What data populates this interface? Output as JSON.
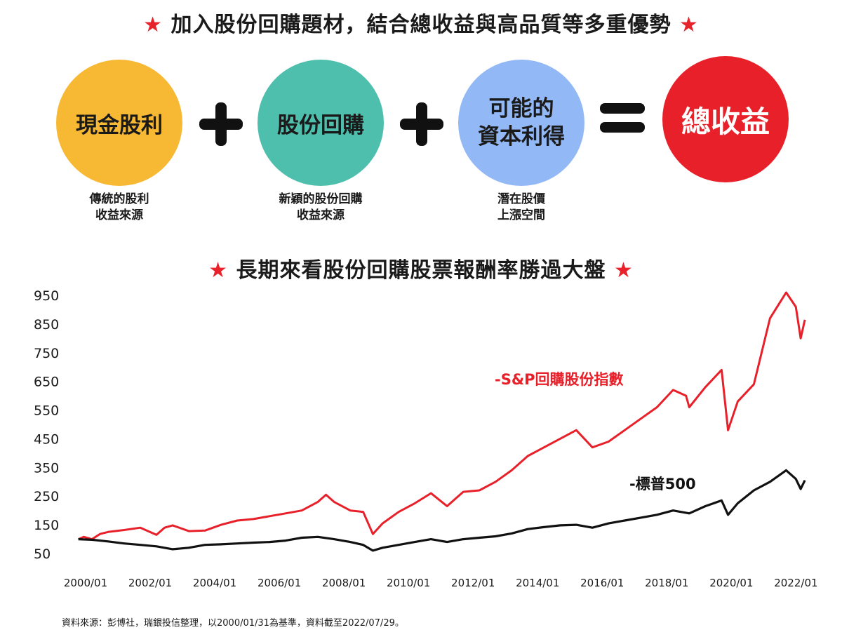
{
  "headline_top": {
    "star": "★",
    "text": "加入股份回購題材，結合總收益與高品質等多重優勢"
  },
  "formula": {
    "dividend": "現金股利",
    "buyback": "股份回購",
    "capital_line1": "可能的",
    "capital_line2": "資本利得",
    "total": "總收益",
    "colors": {
      "dividend": "#f7b934",
      "buyback": "#4fbfad",
      "capital": "#92b8f5",
      "total": "#e8202a"
    }
  },
  "captions": {
    "dividend": [
      "傳統的股利",
      "收益來源"
    ],
    "buyback": [
      "新穎的股份回購",
      "收益來源"
    ],
    "capital": [
      "潛在股價",
      "上漲空間"
    ]
  },
  "headline_mid": {
    "star": "★",
    "text": "長期來看股份回購股票報酬率勝過大盤"
  },
  "chart_data": {
    "type": "line",
    "title": "",
    "xlabel": "",
    "ylabel": "",
    "ylim": [
      50,
      950
    ],
    "yticks": [
      "950",
      "850",
      "750",
      "650",
      "550",
      "450",
      "350",
      "250",
      "150",
      "50"
    ],
    "xticks": [
      "2000/01",
      "2002/01",
      "2004/01",
      "2006/01",
      "2008/01",
      "2010/01",
      "2012/01",
      "2014/01",
      "2016/01",
      "2018/01",
      "2020/01",
      "2022/01"
    ],
    "xrange": [
      2000.0,
      2022.6
    ],
    "grid": false,
    "series": [
      {
        "name": "-S&P回購股份指數",
        "color": "#e8202a",
        "x": [
          2000.08,
          2000.25,
          2000.5,
          2000.75,
          2001.0,
          2001.5,
          2002.0,
          2002.5,
          2002.75,
          2003.0,
          2003.5,
          2004.0,
          2004.5,
          2005.0,
          2005.5,
          2006.0,
          2006.5,
          2007.0,
          2007.5,
          2007.75,
          2008.0,
          2008.5,
          2008.9,
          2009.2,
          2009.5,
          2010.0,
          2010.5,
          2011.0,
          2011.5,
          2011.75,
          2012.0,
          2012.5,
          2013.0,
          2013.5,
          2014.0,
          2014.5,
          2015.0,
          2015.5,
          2016.0,
          2016.5,
          2017.0,
          2017.5,
          2018.0,
          2018.5,
          2018.9,
          2019.0,
          2019.5,
          2020.0,
          2020.2,
          2020.5,
          2021.0,
          2021.5,
          2022.0,
          2022.3,
          2022.45,
          2022.58
        ],
        "values": [
          100,
          108,
          100,
          118,
          125,
          132,
          140,
          115,
          140,
          148,
          128,
          130,
          150,
          165,
          170,
          180,
          190,
          200,
          230,
          255,
          230,
          200,
          195,
          118,
          155,
          195,
          225,
          260,
          215,
          240,
          265,
          270,
          300,
          340,
          390,
          420,
          450,
          480,
          420,
          440,
          480,
          520,
          560,
          620,
          600,
          560,
          630,
          690,
          480,
          580,
          640,
          870,
          960,
          910,
          800,
          865
        ]
      },
      {
        "name": "-標普500",
        "color": "#111111",
        "x": [
          2000.08,
          2000.5,
          2001.0,
          2001.5,
          2002.0,
          2002.5,
          2003.0,
          2003.5,
          2004.0,
          2004.5,
          2005.0,
          2005.5,
          2006.0,
          2006.5,
          2007.0,
          2007.5,
          2008.0,
          2008.5,
          2008.9,
          2009.2,
          2009.5,
          2010.0,
          2010.5,
          2011.0,
          2011.5,
          2012.0,
          2012.5,
          2013.0,
          2013.5,
          2014.0,
          2014.5,
          2015.0,
          2015.5,
          2016.0,
          2016.5,
          2017.0,
          2017.5,
          2018.0,
          2018.5,
          2019.0,
          2019.5,
          2020.0,
          2020.2,
          2020.5,
          2021.0,
          2021.5,
          2022.0,
          2022.3,
          2022.45,
          2022.58
        ],
        "values": [
          100,
          98,
          92,
          85,
          80,
          75,
          65,
          70,
          80,
          82,
          85,
          88,
          90,
          95,
          105,
          108,
          100,
          90,
          80,
          60,
          70,
          80,
          90,
          100,
          90,
          100,
          105,
          110,
          120,
          135,
          142,
          148,
          150,
          140,
          155,
          165,
          175,
          185,
          200,
          190,
          215,
          235,
          185,
          225,
          270,
          300,
          340,
          310,
          275,
          305
        ]
      }
    ]
  },
  "source_note": "資料來源：彭博社，瑞銀投信整理，以2000/01/31為基準，資料截至2022/07/29。"
}
